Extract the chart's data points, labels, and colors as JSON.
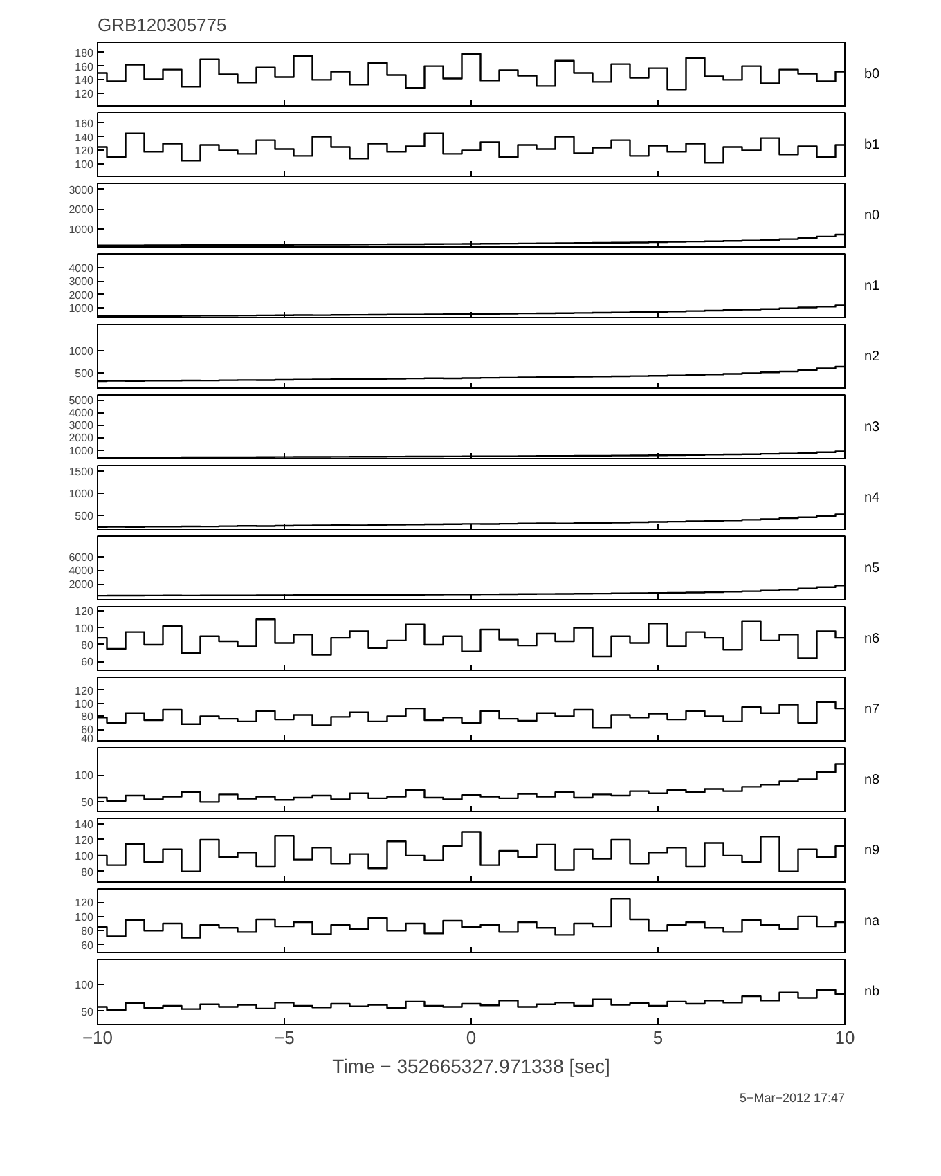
{
  "chart_data": [
    {
      "type": "step",
      "title": "GRB120305775",
      "x": [
        -10,
        -9.5,
        -9,
        -8.5,
        -8,
        -7.5,
        -7,
        -6.5,
        -6,
        -5.5,
        -5,
        -4.5,
        -4,
        -3.5,
        -3,
        -2.5,
        -2,
        -1.5,
        -1,
        -0.5,
        0,
        0.5,
        1,
        1.5,
        2,
        2.5,
        3,
        3.5,
        4,
        4.5,
        5,
        5.5,
        6,
        6.5,
        7,
        7.5,
        8,
        8.5,
        9,
        9.5,
        10
      ],
      "xlim": [
        -10,
        10
      ],
      "xticks": [
        -10,
        -5,
        0,
        5,
        10
      ],
      "ylim": [
        100,
        195
      ],
      "yticks": [
        120,
        140,
        160,
        180
      ],
      "tick_labels": "y",
      "series": [
        {
          "name": "b0",
          "color": "#000000",
          "values": [
            150,
            138,
            162,
            141,
            155,
            130,
            170,
            148,
            136,
            158,
            144,
            175,
            140,
            152,
            133,
            165,
            147,
            128,
            160,
            142,
            178,
            139,
            154,
            146,
            131,
            168,
            150,
            137,
            163,
            143,
            157,
            126,
            172,
            145,
            140,
            160,
            135,
            155,
            149,
            138,
            152
          ]
        }
      ]
    },
    {
      "type": "step",
      "x": [
        -10,
        -9.5,
        -9,
        -8.5,
        -8,
        -7.5,
        -7,
        -6.5,
        -6,
        -5.5,
        -5,
        -4.5,
        -4,
        -3.5,
        -3,
        -2.5,
        -2,
        -1.5,
        -1,
        -0.5,
        0,
        0.5,
        1,
        1.5,
        2,
        2.5,
        3,
        3.5,
        4,
        4.5,
        5,
        5.5,
        6,
        6.5,
        7,
        7.5,
        8,
        8.5,
        9,
        9.5,
        10
      ],
      "xlim": [
        -10,
        10
      ],
      "xticks": [
        -10,
        -5,
        0,
        5,
        10
      ],
      "ylim": [
        80,
        175
      ],
      "yticks": [
        100,
        120,
        140,
        160
      ],
      "tick_labels": "y",
      "series": [
        {
          "name": "b1",
          "color": "#000000",
          "values": [
            125,
            110,
            145,
            118,
            130,
            105,
            128,
            120,
            115,
            135,
            122,
            112,
            140,
            125,
            108,
            130,
            118,
            126,
            145,
            115,
            120,
            132,
            110,
            128,
            122,
            140,
            116,
            124,
            135,
            112,
            127,
            118,
            130,
            102,
            125,
            120,
            138,
            114,
            126,
            110,
            128
          ]
        }
      ]
    },
    {
      "type": "step",
      "x": [
        -10,
        -9.5,
        -9,
        -8.5,
        -8,
        -7.5,
        -7,
        -6.5,
        -6,
        -5.5,
        -5,
        -4.5,
        -4,
        -3.5,
        -3,
        -2.5,
        -2,
        -1.5,
        -1,
        -0.5,
        0,
        0.5,
        1,
        1.5,
        2,
        2.5,
        3,
        3.5,
        4,
        4.5,
        5,
        5.5,
        6,
        6.5,
        7,
        7.5,
        8,
        8.5,
        9,
        9.5,
        10
      ],
      "xlim": [
        -10,
        10
      ],
      "xticks": [
        -10,
        -5,
        0,
        5,
        10
      ],
      "ylim": [
        0,
        3300
      ],
      "yticks": [
        1000,
        2000,
        3000
      ],
      "tick_labels": "y",
      "series": [
        {
          "name": "n0",
          "color": "#000000",
          "values": [
            150,
            155,
            152,
            160,
            158,
            165,
            170,
            168,
            175,
            180,
            182,
            190,
            188,
            195,
            200,
            205,
            210,
            212,
            220,
            225,
            230,
            235,
            240,
            250,
            255,
            262,
            270,
            280,
            290,
            300,
            315,
            330,
            345,
            360,
            380,
            400,
            430,
            470,
            520,
            600,
            700
          ]
        }
      ]
    },
    {
      "type": "step",
      "x": [
        -10,
        -9.5,
        -9,
        -8.5,
        -8,
        -7.5,
        -7,
        -6.5,
        -6,
        -5.5,
        -5,
        -4.5,
        -4,
        -3.5,
        -3,
        -2.5,
        -2,
        -1.5,
        -1,
        -0.5,
        0,
        0.5,
        1,
        1.5,
        2,
        2.5,
        3,
        3.5,
        4,
        4.5,
        5,
        5.5,
        6,
        6.5,
        7,
        7.5,
        8,
        8.5,
        9,
        9.5,
        10
      ],
      "xlim": [
        -10,
        10
      ],
      "xticks": [
        -10,
        -5,
        0,
        5,
        10
      ],
      "ylim": [
        200,
        5000
      ],
      "yticks": [
        1000,
        2000,
        3000,
        4000
      ],
      "tick_labels": "y",
      "series": [
        {
          "name": "n1",
          "color": "#000000",
          "values": [
            400,
            410,
            405,
            420,
            415,
            430,
            440,
            435,
            450,
            460,
            465,
            480,
            475,
            490,
            500,
            505,
            520,
            525,
            540,
            545,
            560,
            570,
            580,
            600,
            610,
            620,
            640,
            660,
            680,
            700,
            720,
            750,
            780,
            810,
            850,
            890,
            930,
            980,
            1040,
            1100,
            1200
          ]
        }
      ]
    },
    {
      "type": "step",
      "x": [
        -10,
        -9.5,
        -9,
        -8.5,
        -8,
        -7.5,
        -7,
        -6.5,
        -6,
        -5.5,
        -5,
        -4.5,
        -4,
        -3.5,
        -3,
        -2.5,
        -2,
        -1.5,
        -1,
        -0.5,
        0,
        0.5,
        1,
        1.5,
        2,
        2.5,
        3,
        3.5,
        4,
        4.5,
        5,
        5.5,
        6,
        6.5,
        7,
        7.5,
        8,
        8.5,
        9,
        9.5,
        10
      ],
      "xlim": [
        -10,
        10
      ],
      "xticks": [
        -10,
        -5,
        0,
        5,
        10
      ],
      "ylim": [
        120,
        1600
      ],
      "yticks": [
        500,
        1000
      ],
      "tick_labels": "y",
      "series": [
        {
          "name": "n2",
          "color": "#000000",
          "values": [
            310,
            315,
            312,
            320,
            318,
            325,
            322,
            330,
            335,
            332,
            340,
            345,
            350,
            355,
            352,
            360,
            365,
            370,
            375,
            372,
            380,
            385,
            390,
            395,
            400,
            405,
            410,
            415,
            420,
            425,
            430,
            440,
            450,
            460,
            475,
            490,
            510,
            530,
            560,
            600,
            640
          ]
        }
      ]
    },
    {
      "type": "step",
      "x": [
        -10,
        -9.5,
        -9,
        -8.5,
        -8,
        -7.5,
        -7,
        -6.5,
        -6,
        -5.5,
        -5,
        -4.5,
        -4,
        -3.5,
        -3,
        -2.5,
        -2,
        -1.5,
        -1,
        -0.5,
        0,
        0.5,
        1,
        1.5,
        2,
        2.5,
        3,
        3.5,
        4,
        4.5,
        5,
        5.5,
        6,
        6.5,
        7,
        7.5,
        8,
        8.5,
        9,
        9.5,
        10
      ],
      "xlim": [
        -10,
        10
      ],
      "xticks": [
        -10,
        -5,
        0,
        5,
        10
      ],
      "ylim": [
        200,
        5400
      ],
      "yticks": [
        1000,
        2000,
        3000,
        4000,
        5000
      ],
      "tick_labels": "y",
      "series": [
        {
          "name": "n3",
          "color": "#000000",
          "values": [
            400,
            405,
            410,
            408,
            415,
            420,
            425,
            422,
            430,
            435,
            440,
            445,
            450,
            455,
            460,
            465,
            470,
            475,
            480,
            485,
            490,
            495,
            500,
            510,
            515,
            520,
            530,
            540,
            550,
            560,
            570,
            585,
            600,
            620,
            640,
            660,
            690,
            720,
            760,
            820,
            900
          ]
        }
      ]
    },
    {
      "type": "step",
      "x": [
        -10,
        -9.5,
        -9,
        -8.5,
        -8,
        -7.5,
        -7,
        -6.5,
        -6,
        -5.5,
        -5,
        -4.5,
        -4,
        -3.5,
        -3,
        -2.5,
        -2,
        -1.5,
        -1,
        -0.5,
        0,
        0.5,
        1,
        1.5,
        2,
        2.5,
        3,
        3.5,
        4,
        4.5,
        5,
        5.5,
        6,
        6.5,
        7,
        7.5,
        8,
        8.5,
        9,
        9.5,
        10
      ],
      "xlim": [
        -10,
        10
      ],
      "xticks": [
        -10,
        -5,
        0,
        5,
        10
      ],
      "ylim": [
        150,
        1620
      ],
      "yticks": [
        500,
        1000,
        1500
      ],
      "tick_labels": "y",
      "series": [
        {
          "name": "n4",
          "color": "#000000",
          "values": [
            230,
            235,
            232,
            240,
            238,
            245,
            242,
            250,
            255,
            252,
            260,
            265,
            268,
            272,
            270,
            278,
            282,
            285,
            290,
            295,
            300,
            298,
            305,
            310,
            315,
            312,
            320,
            325,
            330,
            338,
            345,
            352,
            360,
            370,
            380,
            395,
            410,
            430,
            450,
            480,
            520
          ]
        }
      ]
    },
    {
      "type": "step",
      "x": [
        -10,
        -9.5,
        -9,
        -8.5,
        -8,
        -7.5,
        -7,
        -6.5,
        -6,
        -5.5,
        -5,
        -4.5,
        -4,
        -3.5,
        -3,
        -2.5,
        -2,
        -1.5,
        -1,
        -0.5,
        0,
        0.5,
        1,
        1.5,
        2,
        2.5,
        3,
        3.5,
        4,
        4.5,
        5,
        5.5,
        6,
        6.5,
        7,
        7.5,
        8,
        8.5,
        9,
        9.5,
        10
      ],
      "xlim": [
        -10,
        10
      ],
      "xticks": [
        -10,
        -5,
        0,
        5,
        10
      ],
      "ylim": [
        -500,
        9000
      ],
      "yticks": [
        2000,
        4000,
        6000
      ],
      "tick_labels": "y",
      "series": [
        {
          "name": "n5",
          "color": "#000000",
          "values": [
            300,
            310,
            305,
            320,
            330,
            325,
            340,
            350,
            345,
            360,
            370,
            380,
            390,
            400,
            410,
            420,
            430,
            440,
            455,
            470,
            480,
            500,
            510,
            530,
            545,
            560,
            580,
            600,
            630,
            660,
            690,
            730,
            770,
            820,
            880,
            950,
            1050,
            1180,
            1350,
            1550,
            1800
          ]
        }
      ]
    },
    {
      "type": "step",
      "x": [
        -10,
        -9.5,
        -9,
        -8.5,
        -8,
        -7.5,
        -7,
        -6.5,
        -6,
        -5.5,
        -5,
        -4.5,
        -4,
        -3.5,
        -3,
        -2.5,
        -2,
        -1.5,
        -1,
        -0.5,
        0,
        0.5,
        1,
        1.5,
        2,
        2.5,
        3,
        3.5,
        4,
        4.5,
        5,
        5.5,
        6,
        6.5,
        7,
        7.5,
        8,
        8.5,
        9,
        9.5,
        10
      ],
      "xlim": [
        -10,
        10
      ],
      "xticks": [
        -10,
        -5,
        0,
        5,
        10
      ],
      "ylim": [
        48,
        125
      ],
      "yticks": [
        60,
        80,
        100,
        120
      ],
      "tick_labels": "y",
      "series": [
        {
          "name": "n6",
          "color": "#000000",
          "values": [
            88,
            75,
            95,
            80,
            102,
            70,
            90,
            84,
            78,
            110,
            82,
            92,
            68,
            88,
            96,
            76,
            85,
            104,
            80,
            90,
            72,
            98,
            86,
            79,
            93,
            84,
            100,
            66,
            90,
            82,
            105,
            78,
            95,
            88,
            74,
            108,
            85,
            92,
            64,
            96,
            88
          ]
        }
      ]
    },
    {
      "type": "step",
      "x": [
        -10,
        -9.5,
        -9,
        -8.5,
        -8,
        -7.5,
        -7,
        -6.5,
        -6,
        -5.5,
        -5,
        -4.5,
        -4,
        -3.5,
        -3,
        -2.5,
        -2,
        -1.5,
        -1,
        -0.5,
        0,
        0.5,
        1,
        1.5,
        2,
        2.5,
        3,
        3.5,
        4,
        4.5,
        5,
        5.5,
        6,
        6.5,
        7,
        7.5,
        8,
        8.5,
        9,
        9.5,
        10
      ],
      "xlim": [
        -10,
        10
      ],
      "xticks": [
        -10,
        -5,
        0,
        5,
        10
      ],
      "ylim": [
        40,
        140
      ],
      "yticks": [
        40,
        60,
        80,
        100,
        120
      ],
      "tick_labels": "y",
      "series": [
        {
          "name": "n7",
          "color": "#000000",
          "values": [
            78,
            70,
            85,
            74,
            90,
            68,
            80,
            76,
            72,
            88,
            75,
            82,
            66,
            79,
            86,
            72,
            80,
            92,
            74,
            78,
            70,
            88,
            76,
            73,
            85,
            80,
            90,
            62,
            82,
            78,
            84,
            75,
            88,
            80,
            72,
            94,
            85,
            98,
            70,
            102,
            92
          ]
        }
      ]
    },
    {
      "type": "step",
      "x": [
        -10,
        -9.5,
        -9,
        -8.5,
        -8,
        -7.5,
        -7,
        -6.5,
        -6,
        -5.5,
        -5,
        -4.5,
        -4,
        -3.5,
        -3,
        -2.5,
        -2,
        -1.5,
        -1,
        -0.5,
        0,
        0.5,
        1,
        1.5,
        2,
        2.5,
        3,
        3.5,
        4,
        4.5,
        5,
        5.5,
        6,
        6.5,
        7,
        7.5,
        8,
        8.5,
        9,
        9.5,
        10
      ],
      "xlim": [
        -10,
        10
      ],
      "xticks": [
        -10,
        -5,
        0,
        5,
        10
      ],
      "ylim": [
        30,
        150
      ],
      "yticks": [
        50,
        100
      ],
      "tick_labels": "y",
      "series": [
        {
          "name": "n8",
          "color": "#000000",
          "values": [
            58,
            52,
            62,
            55,
            60,
            68,
            50,
            64,
            56,
            60,
            54,
            58,
            62,
            55,
            66,
            57,
            60,
            72,
            58,
            55,
            63,
            60,
            57,
            65,
            60,
            68,
            58,
            64,
            62,
            70,
            66,
            72,
            68,
            74,
            70,
            78,
            82,
            88,
            92,
            105,
            120
          ]
        }
      ]
    },
    {
      "type": "step",
      "x": [
        -10,
        -9.5,
        -9,
        -8.5,
        -8,
        -7.5,
        -7,
        -6.5,
        -6,
        -5.5,
        -5,
        -4.5,
        -4,
        -3.5,
        -3,
        -2.5,
        -2,
        -1.5,
        -1,
        -0.5,
        0,
        0.5,
        1,
        1.5,
        2,
        2.5,
        3,
        3.5,
        4,
        4.5,
        5,
        5.5,
        6,
        6.5,
        7,
        7.5,
        8,
        8.5,
        9,
        9.5,
        10
      ],
      "xlim": [
        -10,
        10
      ],
      "xticks": [
        -10,
        -5,
        0,
        5,
        10
      ],
      "ylim": [
        65,
        147
      ],
      "yticks": [
        80,
        100,
        120,
        140
      ],
      "tick_labels": "y",
      "series": [
        {
          "name": "n9",
          "color": "#000000",
          "values": [
            100,
            88,
            115,
            92,
            108,
            80,
            120,
            98,
            104,
            86,
            125,
            95,
            110,
            90,
            102,
            84,
            118,
            100,
            94,
            112,
            130,
            88,
            106,
            98,
            114,
            82,
            108,
            96,
            120,
            90,
            104,
            110,
            86,
            116,
            100,
            92,
            124,
            80,
            108,
            98,
            112
          ]
        }
      ]
    },
    {
      "type": "step",
      "x": [
        -10,
        -9.5,
        -9,
        -8.5,
        -8,
        -7.5,
        -7,
        -6.5,
        -6,
        -5.5,
        -5,
        -4.5,
        -4,
        -3.5,
        -3,
        -2.5,
        -2,
        -1.5,
        -1,
        -0.5,
        0,
        0.5,
        1,
        1.5,
        2,
        2.5,
        3,
        3.5,
        4,
        4.5,
        5,
        5.5,
        6,
        6.5,
        7,
        7.5,
        8,
        8.5,
        9,
        9.5,
        10
      ],
      "xlim": [
        -10,
        10
      ],
      "xticks": [
        -10,
        -5,
        0,
        5,
        10
      ],
      "ylim": [
        47,
        139
      ],
      "yticks": [
        60,
        80,
        100,
        120
      ],
      "tick_labels": "y",
      "series": [
        {
          "name": "na",
          "color": "#000000",
          "values": [
            85,
            72,
            95,
            80,
            90,
            70,
            88,
            84,
            78,
            96,
            86,
            92,
            75,
            88,
            82,
            98,
            80,
            90,
            76,
            94,
            85,
            88,
            78,
            92,
            84,
            74,
            90,
            86,
            125,
            96,
            80,
            88,
            92,
            84,
            78,
            95,
            88,
            82,
            100,
            86,
            92
          ]
        }
      ]
    },
    {
      "type": "step",
      "xlabel": "Time − 352665327.971338 [sec]",
      "annotations": [
        "5−Mar−2012 17:47"
      ],
      "x": [
        -10,
        -9.5,
        -9,
        -8.5,
        -8,
        -7.5,
        -7,
        -6.5,
        -6,
        -5.5,
        -5,
        -4.5,
        -4,
        -3.5,
        -3,
        -2.5,
        -2,
        -1.5,
        -1,
        -0.5,
        0,
        0.5,
        1,
        1.5,
        2,
        2.5,
        3,
        3.5,
        4,
        4.5,
        5,
        5.5,
        6,
        6.5,
        7,
        7.5,
        8,
        8.5,
        9,
        9.5,
        10
      ],
      "xlim": [
        -10,
        10
      ],
      "xticks": [
        -10,
        -5,
        0,
        5,
        10
      ],
      "ylim": [
        25,
        147
      ],
      "yticks": [
        50,
        100
      ],
      "series": [
        {
          "name": "nb",
          "color": "#000000",
          "values": [
            58,
            52,
            65,
            56,
            60,
            54,
            63,
            58,
            62,
            55,
            66,
            60,
            57,
            64,
            59,
            62,
            56,
            68,
            60,
            58,
            64,
            61,
            70,
            58,
            63,
            66,
            60,
            72,
            62,
            65,
            60,
            68,
            64,
            70,
            66,
            78,
            70,
            85,
            75,
            90,
            82
          ]
        }
      ]
    }
  ]
}
